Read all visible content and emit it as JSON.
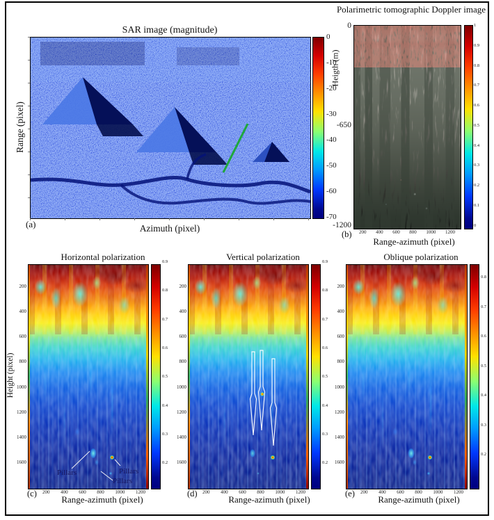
{
  "chart_data": [
    {
      "panel_tag": "(a)",
      "type": "heatmap",
      "title": "SAR image (magnitude)",
      "xlabel": "Azimuth (pixel)",
      "ylabel": "Range (pixel)",
      "colormap": "jet",
      "colorbar_ticks": [
        0,
        -10,
        -20,
        -30,
        -40,
        -50,
        -60,
        -70
      ],
      "colorbar_range": [
        -70,
        0
      ],
      "features": [
        "speckled blue SAR magnitude scene",
        "two large pyramids with bright lit faces and dark radar-shadow faces",
        "one small pyramid at lower right",
        "green line marking the tomographic slice",
        "dark winding roads across the scene"
      ]
    },
    {
      "panel_tag": "(b)",
      "type": "heatmap",
      "title": "Polarimetric tomographic Doppler image",
      "xlabel": "Range-azimuth (pixel)",
      "ylabel": "Heigth (m)",
      "xticks": [
        200,
        400,
        600,
        800,
        1000,
        1200
      ],
      "yticks": [
        0,
        -650,
        -1200
      ],
      "colorbar_ticks": [
        1,
        0.9,
        0.8,
        0.7,
        0.6,
        0.5,
        0.4,
        0.3,
        0.2,
        0.1,
        0
      ],
      "colorbar_range": [
        0,
        1
      ],
      "features": [
        "bright gray-white columnar structures in upper half fading to black at depth",
        "reddish band near the top",
        "sparse white and red point scatterers in the dark lower half"
      ]
    },
    {
      "panel_tag": "(c)",
      "type": "heatmap",
      "title": "Horizontal polarization",
      "xlabel": "Range-azimuth (pixel)",
      "ylabel": "Height (pixel)",
      "xticks": [
        200,
        400,
        600,
        800,
        1000,
        1200
      ],
      "yticks": [
        200,
        400,
        600,
        800,
        1000,
        1200,
        1400,
        1600
      ],
      "colorbar_ticks": [
        0.9,
        0.8,
        0.7,
        0.6,
        0.5,
        0.4,
        0.3,
        0.2
      ],
      "colormap": "jet",
      "annotations": [
        "Pillars",
        "Pillars",
        "Pillars"
      ],
      "features": [
        "hot red-yellow band over top quarter with cyan blobs",
        "cold dark-blue region below",
        "bright pillar echoes near height 1500"
      ]
    },
    {
      "panel_tag": "(d)",
      "type": "heatmap",
      "title": "Vertical polarization",
      "xlabel": "Range-azimuth (pixel)",
      "xticks": [
        200,
        400,
        600,
        800,
        1000,
        1200
      ],
      "yticks": [
        200,
        400,
        600,
        800,
        1000,
        1200,
        1400,
        1600
      ],
      "colorbar_ticks": [
        0.9,
        0.8,
        0.7,
        0.6,
        0.5,
        0.4,
        0.3,
        0.2
      ],
      "colormap": "jet",
      "features": [
        "three white pillar outline shapes overlaid between heights 800 and 1500",
        "bright echo spots inside and below the outlines"
      ]
    },
    {
      "panel_tag": "(e)",
      "type": "heatmap",
      "title": "Oblique polarization",
      "xlabel": "Range-azimuth (pixel)",
      "xticks": [
        200,
        400,
        600,
        800,
        1000,
        1200
      ],
      "yticks": [
        200,
        400,
        600,
        800,
        1000,
        1200,
        1400,
        1600
      ],
      "colorbar_ticks": [
        0.8,
        0.7,
        0.6,
        0.5,
        0.4,
        0.3,
        0.2
      ],
      "colormap": "jet",
      "features": [
        "hot red-yellow band over top quarter",
        "bright pillar echoes near height 1500"
      ]
    }
  ],
  "colors": {
    "background": "#ffffff",
    "frame": "#000000",
    "annotation_text": "#15155e",
    "annotation_line": "#f0f0f5",
    "green_marker": "#1fa83c"
  }
}
